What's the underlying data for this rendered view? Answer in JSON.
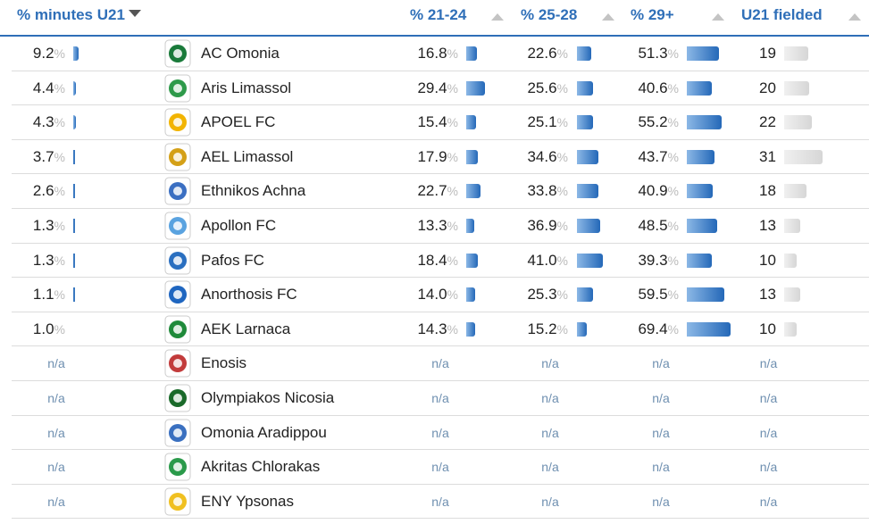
{
  "headers": {
    "minutes_u21": "% minutes U21",
    "p2124": "% 21-24",
    "p2528": "% 25-28",
    "p29": "% 29+",
    "u21_fielded": "U21 fielded"
  },
  "pct_sign": "%",
  "na_text": "n/a",
  "rows": [
    {
      "team": "AC Omonia",
      "logo_color": "#1a7a3a",
      "min": "9.2",
      "a": "16.8",
      "b": "22.6",
      "c": "51.3",
      "f": "19"
    },
    {
      "team": "Aris Limassol",
      "logo_color": "#2e9a4a",
      "min": "4.4",
      "a": "29.4",
      "b": "25.6",
      "c": "40.6",
      "f": "20"
    },
    {
      "team": "APOEL FC",
      "logo_color": "#f2b400",
      "min": "4.3",
      "a": "15.4",
      "b": "25.1",
      "c": "55.2",
      "f": "22"
    },
    {
      "team": "AEL Limassol",
      "logo_color": "#d4a017",
      "min": "3.7",
      "a": "17.9",
      "b": "34.6",
      "c": "43.7",
      "f": "31"
    },
    {
      "team": "Ethnikos Achna",
      "logo_color": "#3b6fc2",
      "min": "2.6",
      "a": "22.7",
      "b": "33.8",
      "c": "40.9",
      "f": "18"
    },
    {
      "team": "Apollon FC",
      "logo_color": "#5aa3e0",
      "min": "1.3",
      "a": "13.3",
      "b": "36.9",
      "c": "48.5",
      "f": "13"
    },
    {
      "team": "Pafos FC",
      "logo_color": "#2a6fc0",
      "min": "1.3",
      "a": "18.4",
      "b": "41.0",
      "c": "39.3",
      "f": "10"
    },
    {
      "team": "Anorthosis FC",
      "logo_color": "#1f66c0",
      "min": "1.1",
      "a": "14.0",
      "b": "25.3",
      "c": "59.5",
      "f": "13"
    },
    {
      "team": "AEK Larnaca",
      "logo_color": "#1f8a3a",
      "min": "1.0",
      "a": "14.3",
      "b": "15.2",
      "c": "69.4",
      "f": "10"
    },
    {
      "team": "Enosis",
      "logo_color": "#c23b3b",
      "min": null,
      "a": null,
      "b": null,
      "c": null,
      "f": null
    },
    {
      "team": "Olympiakos Nicosia",
      "logo_color": "#1a6a2a",
      "min": null,
      "a": null,
      "b": null,
      "c": null,
      "f": null
    },
    {
      "team": "Omonia Aradippou",
      "logo_color": "#3a70c0",
      "min": null,
      "a": null,
      "b": null,
      "c": null,
      "f": null
    },
    {
      "team": "Akritas Chlorakas",
      "logo_color": "#2a9a4a",
      "min": null,
      "a": null,
      "b": null,
      "c": null,
      "f": null
    },
    {
      "team": "ENY Ypsonas",
      "logo_color": "#f0c020",
      "min": null,
      "a": null,
      "b": null,
      "c": null,
      "f": null
    }
  ]
}
